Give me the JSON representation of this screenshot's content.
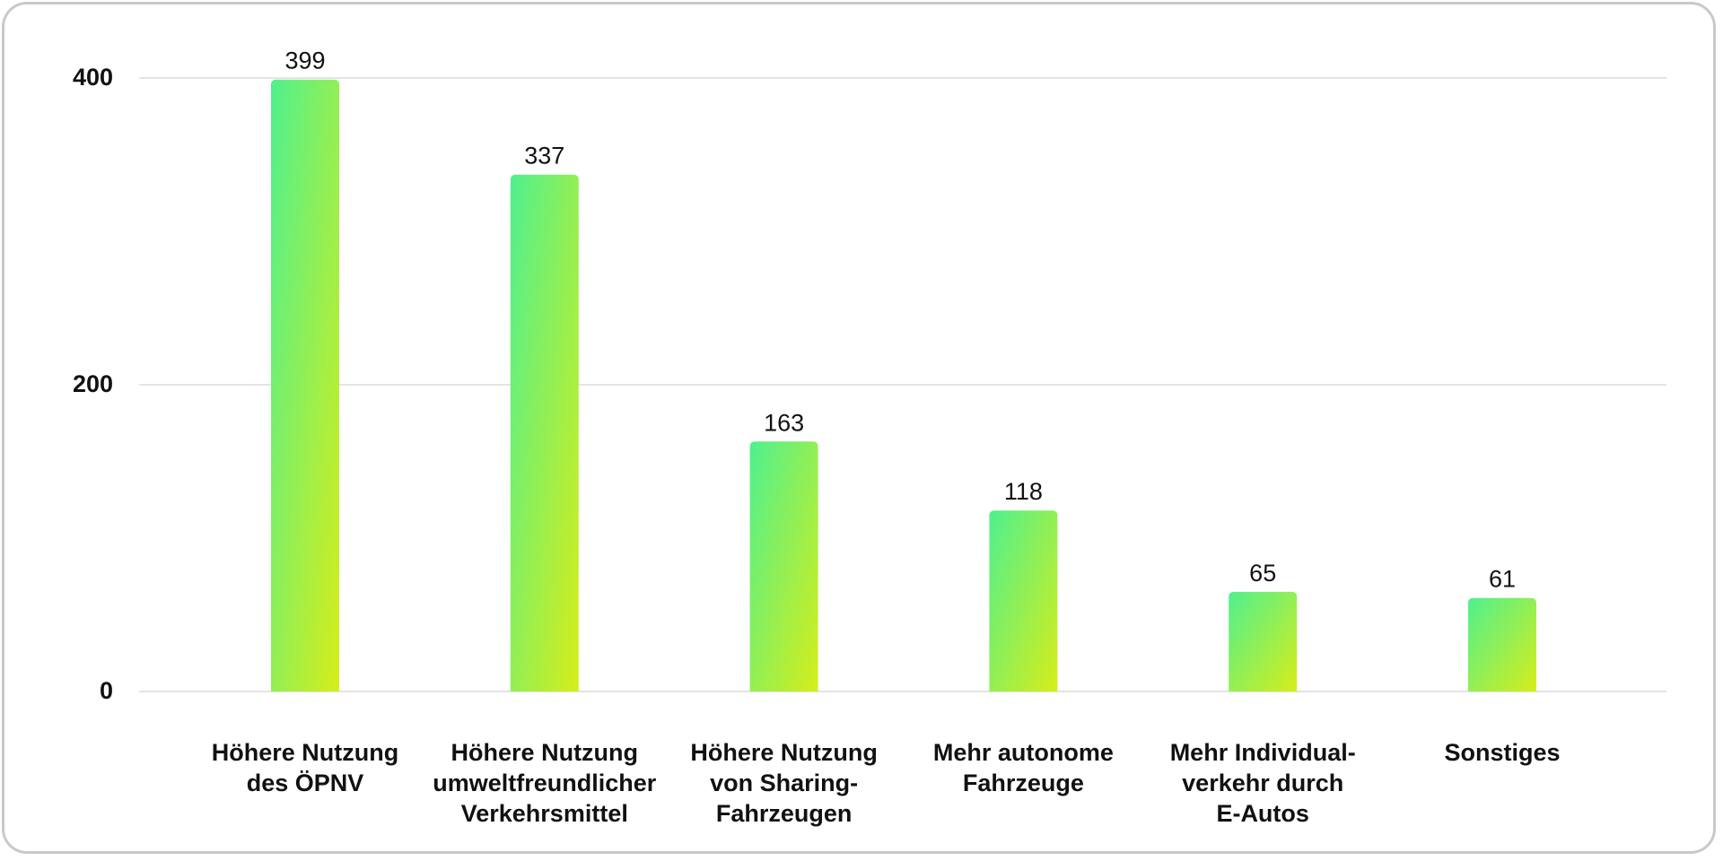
{
  "chart_data": {
    "type": "bar",
    "categories": [
      [
        "Höhere Nutzung",
        "des ÖPNV"
      ],
      [
        "Höhere Nutzung",
        "umweltfreundlicher",
        "Verkehrsmittel"
      ],
      [
        "Höhere Nutzung",
        "von Sharing-",
        "Fahrzeugen"
      ],
      [
        "Mehr autonome",
        "Fahrzeuge"
      ],
      [
        "Mehr Individual-",
        "verkehr durch",
        "E-Autos"
      ],
      [
        "Sonstiges"
      ]
    ],
    "values": [
      399,
      337,
      163,
      118,
      65,
      61
    ],
    "ylim": [
      0,
      400
    ],
    "yticks": [
      0,
      200,
      400
    ],
    "grid": true,
    "colors": {
      "bar_gradient_start": "#4ff08f",
      "bar_gradient_end": "#d6ee1a",
      "grid": "#dcdcdc",
      "text": "#111111"
    }
  }
}
